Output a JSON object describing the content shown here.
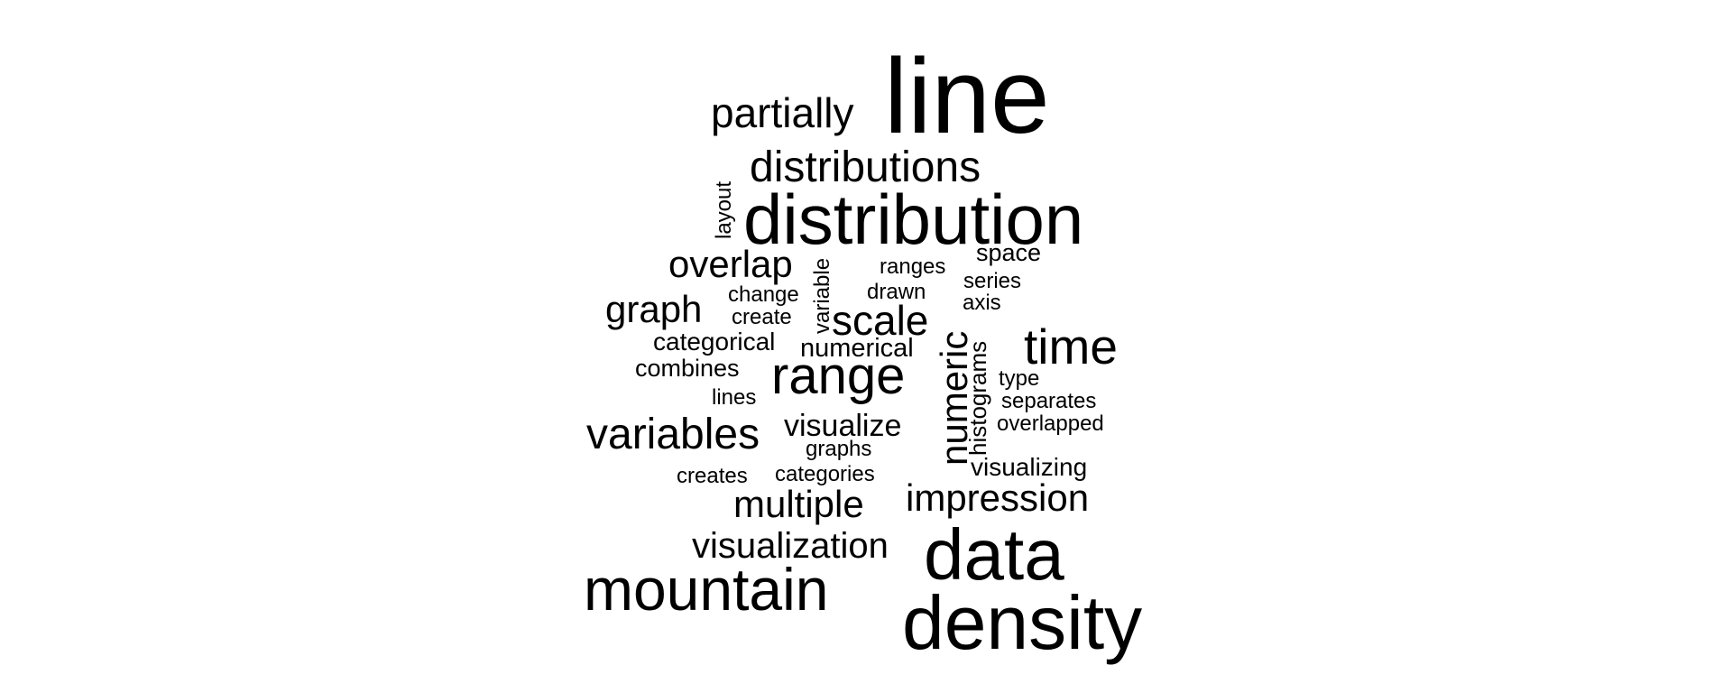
{
  "words": {
    "line": "line",
    "partially": "partially",
    "distributions": "distributions",
    "distribution": "distribution",
    "layout": "layout",
    "space": "space",
    "overlap": "overlap",
    "ranges": "ranges",
    "variable": "variable",
    "series": "series",
    "drawn": "drawn",
    "change": "change",
    "axis": "axis",
    "graph": "graph",
    "scale": "scale",
    "create": "create",
    "categorical": "categorical",
    "numerical": "numerical",
    "time": "time",
    "numeric": "numeric",
    "histograms": "histograms",
    "combines": "combines",
    "range": "range",
    "type": "type",
    "lines": "lines",
    "separates": "separates",
    "variables": "variables",
    "visualize": "visualize",
    "overlapped": "overlapped",
    "graphs": "graphs",
    "visualizing": "visualizing",
    "creates": "creates",
    "categories": "categories",
    "impression": "impression",
    "multiple": "multiple",
    "visualization": "visualization",
    "data": "data",
    "mountain": "mountain",
    "density": "density"
  },
  "colors": {
    "text": "#000000",
    "background": "#ffffff"
  }
}
